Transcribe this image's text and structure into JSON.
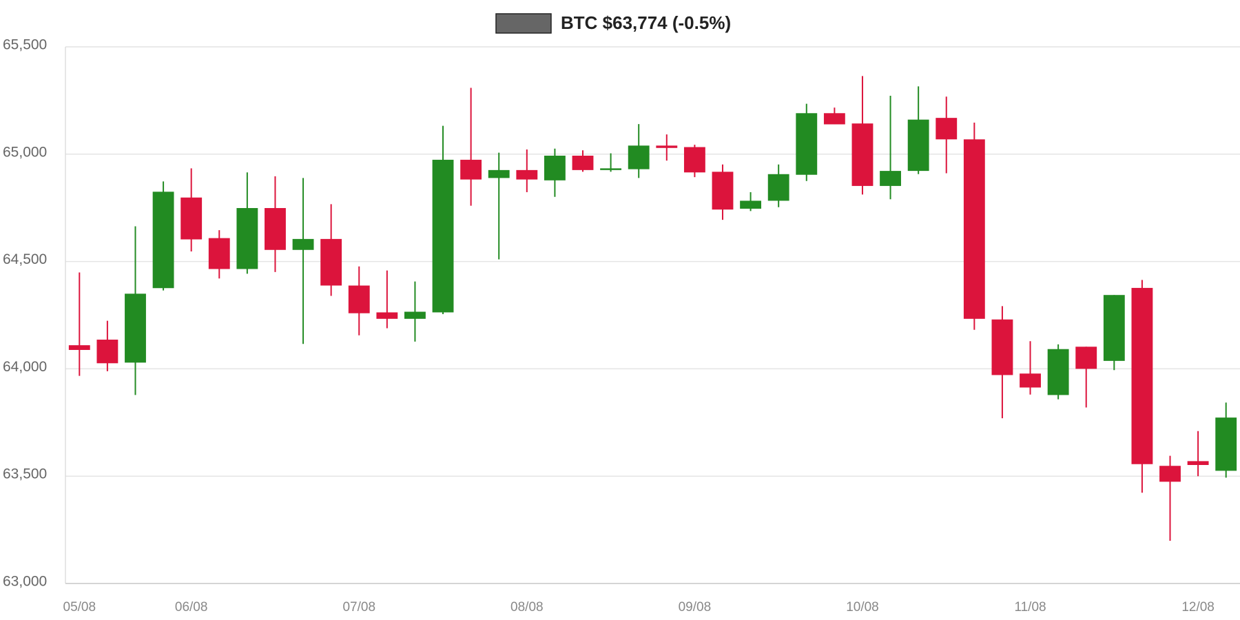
{
  "chart_data": {
    "type": "candlestick",
    "title": "BTC $63,774 (-0.5%)",
    "legend_color": "#666666",
    "up_color": "#228b22",
    "down_color": "#dc143c",
    "categories": [
      "05/08",
      null,
      null,
      null,
      "06/08",
      null,
      null,
      null,
      null,
      null,
      "07/08",
      null,
      null,
      null,
      null,
      null,
      "08/08",
      null,
      null,
      null,
      null,
      null,
      "09/08",
      null,
      null,
      null,
      null,
      null,
      "10/08",
      null,
      null,
      null,
      null,
      null,
      "11/08",
      null,
      null,
      null,
      null,
      null,
      "12/08",
      null
    ],
    "open": [
      64110,
      64136,
      64029,
      64376,
      64798,
      64609,
      64465,
      64749,
      64554,
      64605,
      64388,
      64263,
      64233,
      64263,
      64974,
      64889,
      64926,
      64878,
      64993,
      64926,
      64930,
      65040,
      65033,
      64918,
      64746,
      64783,
      64904,
      65191,
      65143,
      64852,
      64922,
      65169,
      65069,
      64230,
      63978,
      63878,
      64103,
      64037,
      64377,
      63548,
      63570,
      63525
    ],
    "high": [
      64449,
      64224,
      64664,
      64873,
      64934,
      64646,
      64915,
      64897,
      64889,
      64767,
      64477,
      64458,
      64407,
      65132,
      65309,
      65007,
      65022,
      65026,
      65018,
      65004,
      65140,
      65092,
      65044,
      64952,
      64823,
      64952,
      65235,
      65217,
      65364,
      65272,
      65316,
      65268,
      65147,
      64292,
      64129,
      64114,
      64103,
      64344,
      64414,
      63595,
      63710,
      63843
    ],
    "low": [
      63967,
      63989,
      63878,
      64365,
      64547,
      64421,
      64443,
      64451,
      64116,
      64340,
      64156,
      64189,
      64127,
      64255,
      64760,
      64510,
      64823,
      64801,
      64918,
      64918,
      64889,
      64970,
      64893,
      64694,
      64735,
      64753,
      64875,
      65139,
      64812,
      64790,
      64907,
      64911,
      64182,
      63770,
      63880,
      63858,
      63820,
      63994,
      63423,
      63199,
      63500,
      63493
    ],
    "close": [
      64088,
      64026,
      64350,
      64825,
      64603,
      64465,
      64749,
      64554,
      64605,
      64388,
      64259,
      64233,
      64266,
      64974,
      64882,
      64926,
      64882,
      64993,
      64926,
      64934,
      65040,
      65029,
      64915,
      64742,
      64783,
      64907,
      65191,
      65139,
      64852,
      64922,
      65161,
      65069,
      64233,
      63971,
      63913,
      64092,
      64000,
      64344,
      63556,
      63474,
      63552,
      63773
    ],
    "ylim": [
      63000,
      65500
    ],
    "yticks": [
      {
        "value": 63000,
        "label": "63,000"
      },
      {
        "value": 63500,
        "label": "63,500"
      },
      {
        "value": 64000,
        "label": "64,000"
      },
      {
        "value": 64500,
        "label": "64,500"
      },
      {
        "value": 65000,
        "label": "65,000"
      },
      {
        "value": 65500,
        "label": "65,500"
      }
    ],
    "grid": true
  }
}
